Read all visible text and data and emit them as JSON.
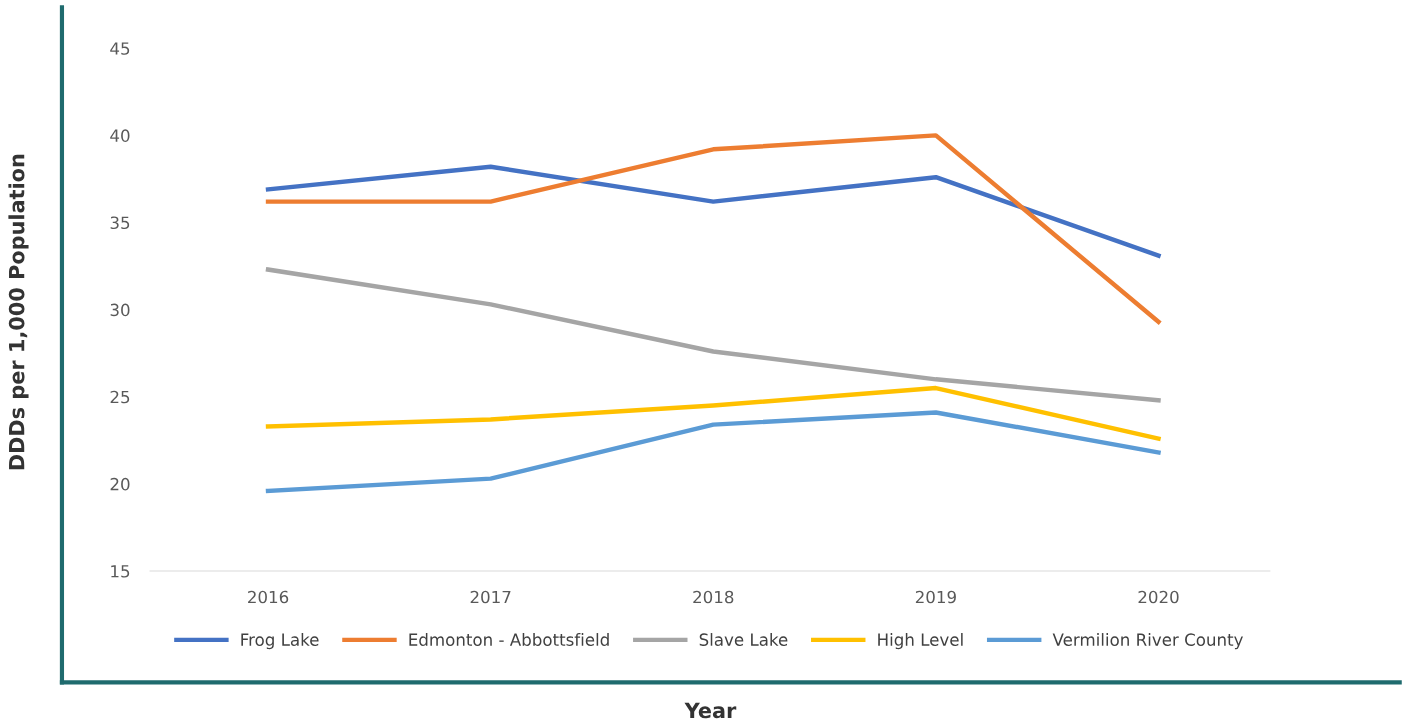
{
  "chart_data": {
    "type": "line",
    "xlabel": "Year",
    "ylabel": "DDDs per 1,000 Population",
    "categories": [
      "2016",
      "2017",
      "2018",
      "2019",
      "2020"
    ],
    "series": [
      {
        "name": "Frog Lake",
        "color": "#4472c4",
        "values": [
          36.9,
          38.2,
          36.2,
          37.6,
          33.1
        ]
      },
      {
        "name": "Edmonton - Abbottsfield",
        "color": "#ed7d31",
        "values": [
          36.2,
          36.2,
          39.2,
          40.0,
          29.3
        ]
      },
      {
        "name": "Slave Lake",
        "color": "#a5a5a5",
        "values": [
          32.3,
          30.3,
          27.6,
          26.0,
          24.8
        ]
      },
      {
        "name": "High Level",
        "color": "#ffc000",
        "values": [
          23.3,
          23.7,
          24.5,
          25.5,
          22.6
        ]
      },
      {
        "name": "Vermilion River County",
        "color": "#5b9bd5",
        "values": [
          19.6,
          20.3,
          23.4,
          24.1,
          21.8
        ]
      }
    ],
    "ylim": [
      15,
      45
    ],
    "yticks": [
      15,
      20,
      25,
      30,
      35,
      40,
      45
    ],
    "grid": false,
    "legend": "bottom",
    "marker": "none",
    "line_style": "solid"
  }
}
